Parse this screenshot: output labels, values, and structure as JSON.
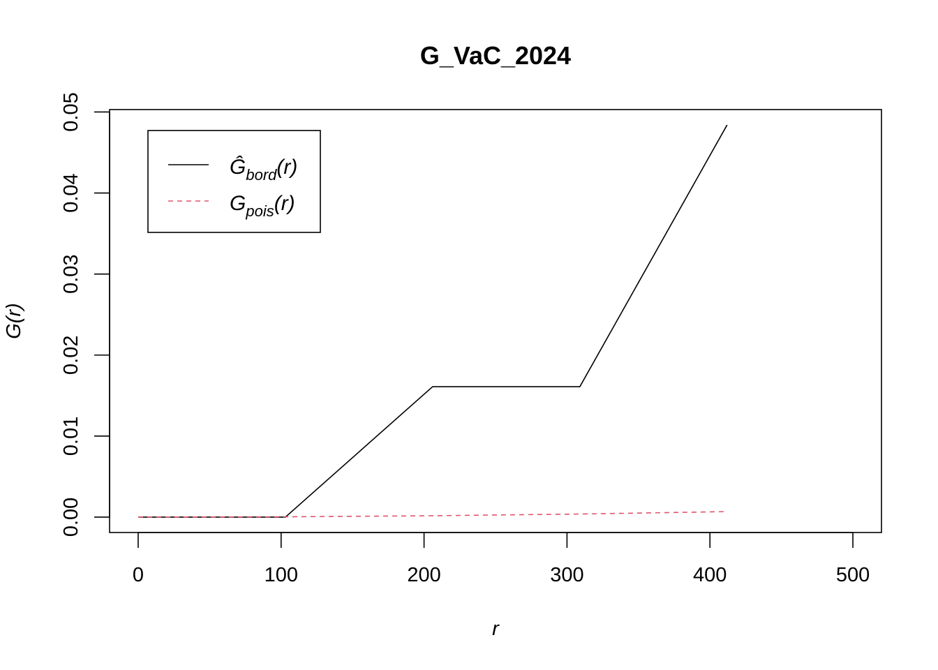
{
  "chart_data": {
    "type": "line",
    "title": "G_VaC_2024",
    "xlabel": "r",
    "ylabel": "G(r)",
    "xlim": [
      -20,
      520
    ],
    "ylim": [
      -0.0019,
      0.0503
    ],
    "x_ticks": [
      0,
      100,
      200,
      300,
      400,
      500
    ],
    "x_tick_labels": [
      "0",
      "100",
      "200",
      "300",
      "400",
      "500"
    ],
    "y_ticks": [
      0,
      0.01,
      0.02,
      0.03,
      0.04,
      0.05
    ],
    "y_tick_labels": [
      "0.00",
      "0.01",
      "0.02",
      "0.03",
      "0.04",
      "0.05"
    ],
    "grid": false,
    "legend_position": "top-left",
    "series": [
      {
        "name": "Ĝbord(r)",
        "name_main": "Ĝ",
        "name_sub": "bord",
        "name_tail": "(r)",
        "color": "#000000",
        "dash": "solid",
        "x": [
          0,
          103,
          206,
          309,
          412
        ],
        "y": [
          0,
          0,
          0.0161,
          0.0161,
          0.0484
        ]
      },
      {
        "name": "Gpois(r)",
        "name_main": "G",
        "name_sub": "pois",
        "name_tail": "(r)",
        "color": "#DF536B",
        "dash": "dashed",
        "x": [
          0,
          103,
          206,
          309,
          412
        ],
        "y": [
          0,
          4e-05,
          0.00017,
          0.00038,
          0.00068
        ]
      }
    ]
  }
}
